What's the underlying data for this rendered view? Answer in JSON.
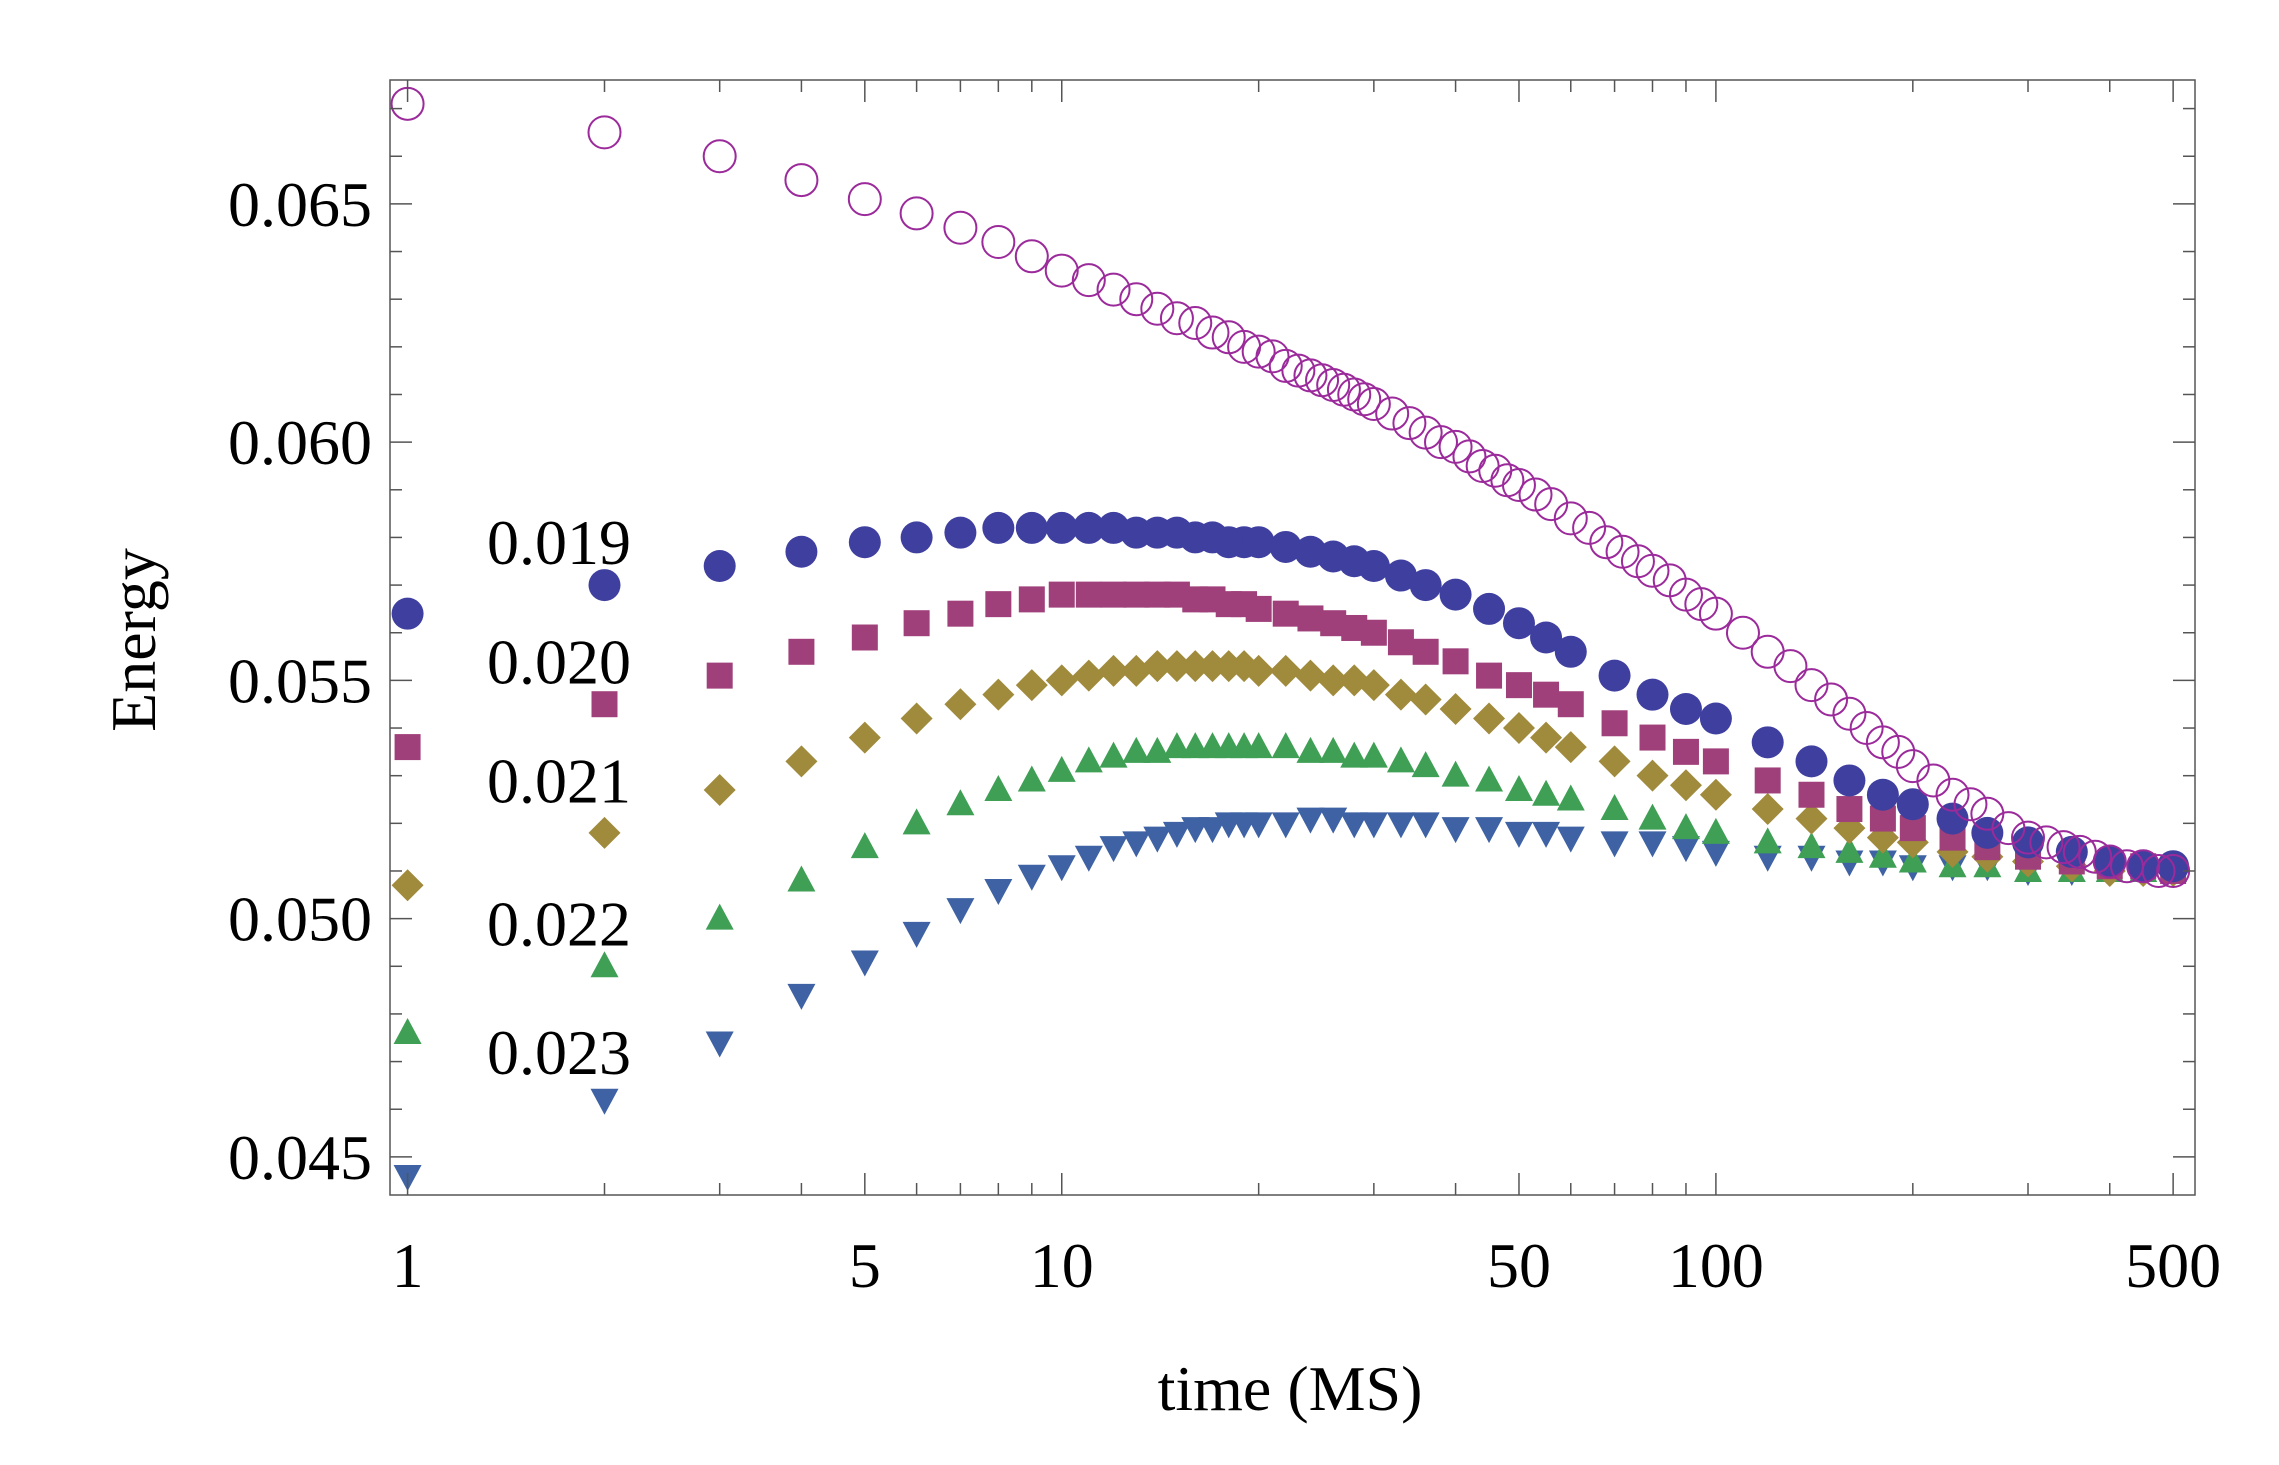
{
  "chart_data": {
    "type": "scatter",
    "title": "",
    "xlabel": "time (MS)",
    "ylabel": "Energy",
    "xscale": "log",
    "xlim": [
      0.94,
      540
    ],
    "ylim": [
      0.0442,
      0.0676
    ],
    "x_ticks_labeled": [
      1,
      5,
      10,
      50,
      100,
      500
    ],
    "x_tick_labels": [
      "1",
      "5",
      "10",
      "50",
      "100",
      "500"
    ],
    "y_ticks_labeled": [
      0.045,
      0.05,
      0.055,
      0.06,
      0.065
    ],
    "y_tick_labels": [
      "0.045",
      "0.050",
      "0.055",
      "0.060",
      "0.065"
    ],
    "legend_placement": "left-center",
    "series": [
      {
        "name": "0.019",
        "marker": "circle",
        "color": "#3f3f9f",
        "values_at": {
          "1": 0.0564,
          "2": 0.057,
          "3": 0.0574,
          "4": 0.0577,
          "5": 0.0579,
          "6": 0.058,
          "7": 0.0581,
          "8": 0.0582,
          "10": 0.0582,
          "15": 0.0581,
          "20": 0.0579,
          "30": 0.0574,
          "50": 0.0562,
          "100": 0.0542,
          "200": 0.0524,
          "500": 0.0511
        },
        "x": [
          1,
          2,
          3,
          4,
          5,
          6,
          7,
          8,
          9,
          10,
          11,
          12,
          13,
          14,
          15,
          16,
          17,
          18,
          19,
          20,
          22,
          24,
          26,
          28,
          30,
          33,
          36,
          40,
          45,
          50,
          55,
          60,
          70,
          80,
          90,
          100,
          120,
          140,
          160,
          180,
          200,
          230,
          260,
          300,
          350,
          400,
          450,
          500
        ],
        "y": [
          0.0564,
          0.057,
          0.0574,
          0.0577,
          0.0579,
          0.058,
          0.0581,
          0.0582,
          0.0582,
          0.0582,
          0.0582,
          0.0582,
          0.0581,
          0.0581,
          0.0581,
          0.058,
          0.058,
          0.0579,
          0.0579,
          0.0579,
          0.0578,
          0.0577,
          0.0576,
          0.0575,
          0.0574,
          0.0572,
          0.057,
          0.0568,
          0.0565,
          0.0562,
          0.0559,
          0.0556,
          0.0551,
          0.0547,
          0.0544,
          0.0542,
          0.0537,
          0.0533,
          0.0529,
          0.0526,
          0.0524,
          0.0521,
          0.0518,
          0.0516,
          0.0514,
          0.0512,
          0.0511,
          0.0511
        ]
      },
      {
        "name": "0.020",
        "marker": "square",
        "color": "#a0407a",
        "x": [
          1,
          2,
          3,
          4,
          5,
          6,
          7,
          8,
          9,
          10,
          11,
          12,
          13,
          14,
          15,
          16,
          17,
          18,
          19,
          20,
          22,
          24,
          26,
          28,
          30,
          33,
          36,
          40,
          45,
          50,
          55,
          60,
          70,
          80,
          90,
          100,
          120,
          140,
          160,
          180,
          200,
          230,
          260,
          300,
          350,
          400,
          450,
          500
        ],
        "y": [
          0.0536,
          0.0545,
          0.0551,
          0.0556,
          0.0559,
          0.0562,
          0.0564,
          0.0566,
          0.0567,
          0.0568,
          0.0568,
          0.0568,
          0.0568,
          0.0568,
          0.0568,
          0.0567,
          0.0567,
          0.0566,
          0.0566,
          0.0565,
          0.0564,
          0.0563,
          0.0562,
          0.0561,
          0.056,
          0.0558,
          0.0556,
          0.0554,
          0.0551,
          0.0549,
          0.0547,
          0.0545,
          0.0541,
          0.0538,
          0.0535,
          0.0533,
          0.0529,
          0.0526,
          0.0523,
          0.0521,
          0.0519,
          0.0517,
          0.0515,
          0.0513,
          0.0512,
          0.0511,
          0.0511,
          0.051
        ]
      },
      {
        "name": "0.021",
        "marker": "diamond",
        "color": "#a08a3c",
        "x": [
          1,
          2,
          3,
          4,
          5,
          6,
          7,
          8,
          9,
          10,
          11,
          12,
          13,
          14,
          15,
          16,
          17,
          18,
          19,
          20,
          22,
          24,
          26,
          28,
          30,
          33,
          36,
          40,
          45,
          50,
          55,
          60,
          70,
          80,
          90,
          100,
          120,
          140,
          160,
          180,
          200,
          230,
          260,
          300,
          350,
          400,
          450,
          500
        ],
        "y": [
          0.0507,
          0.0518,
          0.0527,
          0.0533,
          0.0538,
          0.0542,
          0.0545,
          0.0547,
          0.0549,
          0.055,
          0.0551,
          0.0552,
          0.0552,
          0.0553,
          0.0553,
          0.0553,
          0.0553,
          0.0553,
          0.0553,
          0.0552,
          0.0552,
          0.0551,
          0.055,
          0.055,
          0.0549,
          0.0547,
          0.0546,
          0.0544,
          0.0542,
          0.054,
          0.0538,
          0.0536,
          0.0533,
          0.053,
          0.0528,
          0.0526,
          0.0523,
          0.0521,
          0.0519,
          0.0517,
          0.0516,
          0.0514,
          0.0513,
          0.0512,
          0.0511,
          0.051,
          0.051,
          0.051
        ]
      },
      {
        "name": "0.022",
        "marker": "triangle-up",
        "color": "#3f9f55",
        "x": [
          1,
          2,
          3,
          4,
          5,
          6,
          7,
          8,
          9,
          10,
          11,
          12,
          13,
          14,
          15,
          16,
          17,
          18,
          19,
          20,
          22,
          24,
          26,
          28,
          30,
          33,
          36,
          40,
          45,
          50,
          55,
          60,
          70,
          80,
          90,
          100,
          120,
          140,
          160,
          180,
          200,
          230,
          260,
          300,
          350,
          400,
          450,
          500
        ],
        "y": [
          0.0476,
          0.049,
          0.05,
          0.0508,
          0.0515,
          0.052,
          0.0524,
          0.0527,
          0.0529,
          0.0531,
          0.0533,
          0.0534,
          0.0535,
          0.0535,
          0.0536,
          0.0536,
          0.0536,
          0.0536,
          0.0536,
          0.0536,
          0.0536,
          0.0535,
          0.0535,
          0.0534,
          0.0534,
          0.0533,
          0.0532,
          0.053,
          0.0529,
          0.0527,
          0.0526,
          0.0525,
          0.0523,
          0.0521,
          0.0519,
          0.0518,
          0.0516,
          0.0515,
          0.0514,
          0.0513,
          0.0512,
          0.0511,
          0.0511,
          0.051,
          0.051,
          0.051,
          0.051,
          0.051
        ]
      },
      {
        "name": "0.023",
        "marker": "triangle-down",
        "color": "#3e62a3",
        "x": [
          1,
          2,
          3,
          4,
          5,
          6,
          7,
          8,
          9,
          10,
          11,
          12,
          13,
          14,
          15,
          16,
          17,
          18,
          19,
          20,
          22,
          24,
          26,
          28,
          30,
          33,
          36,
          40,
          45,
          50,
          55,
          60,
          70,
          80,
          90,
          100,
          120,
          140,
          160,
          180,
          200,
          230,
          260,
          300,
          350,
          400,
          450,
          500
        ],
        "y": [
          0.0446,
          0.0462,
          0.0474,
          0.0484,
          0.0491,
          0.0497,
          0.0502,
          0.0506,
          0.0509,
          0.0511,
          0.0513,
          0.0515,
          0.0516,
          0.0517,
          0.0518,
          0.0519,
          0.0519,
          0.052,
          0.052,
          0.052,
          0.052,
          0.0521,
          0.0521,
          0.052,
          0.052,
          0.052,
          0.052,
          0.0519,
          0.0519,
          0.0518,
          0.0518,
          0.0517,
          0.0516,
          0.0516,
          0.0515,
          0.0514,
          0.0513,
          0.0513,
          0.0512,
          0.0512,
          0.0511,
          0.0511,
          0.0511,
          0.051,
          0.051,
          0.051,
          0.051,
          0.051
        ]
      },
      {
        "name": "",
        "marker": "open-circle",
        "color": "#9b2a9b",
        "x": [
          1,
          2,
          3,
          4,
          5,
          6,
          7,
          8,
          9,
          10,
          11,
          12,
          13,
          14,
          15,
          16,
          17,
          18,
          19,
          20,
          21,
          22,
          23,
          24,
          25,
          26,
          27,
          28,
          29,
          30,
          32,
          34,
          36,
          38,
          40,
          42,
          44,
          46,
          48,
          50,
          53,
          56,
          60,
          64,
          68,
          72,
          76,
          80,
          85,
          90,
          95,
          100,
          110,
          120,
          130,
          140,
          150,
          160,
          170,
          180,
          190,
          200,
          215,
          230,
          245,
          260,
          280,
          300,
          320,
          340,
          360,
          380,
          400,
          425,
          450,
          475,
          500
        ],
        "y": [
          0.0671,
          0.0665,
          0.066,
          0.0655,
          0.0651,
          0.0648,
          0.0645,
          0.0642,
          0.0639,
          0.0636,
          0.0634,
          0.0632,
          0.063,
          0.0628,
          0.0626,
          0.0625,
          0.0623,
          0.0622,
          0.062,
          0.0619,
          0.0618,
          0.0616,
          0.0615,
          0.0614,
          0.0613,
          0.0612,
          0.0611,
          0.061,
          0.0609,
          0.0608,
          0.0606,
          0.0604,
          0.0602,
          0.06,
          0.0599,
          0.0597,
          0.0595,
          0.0594,
          0.0592,
          0.0591,
          0.0589,
          0.0587,
          0.0584,
          0.0582,
          0.0579,
          0.0577,
          0.0575,
          0.0573,
          0.0571,
          0.0568,
          0.0566,
          0.0564,
          0.056,
          0.0556,
          0.0553,
          0.0549,
          0.0546,
          0.0543,
          0.054,
          0.0537,
          0.0535,
          0.0532,
          0.0529,
          0.0526,
          0.0524,
          0.0522,
          0.0519,
          0.0517,
          0.0516,
          0.0515,
          0.0514,
          0.0513,
          0.0512,
          0.0511,
          0.0511,
          0.051,
          0.051
        ]
      }
    ]
  }
}
